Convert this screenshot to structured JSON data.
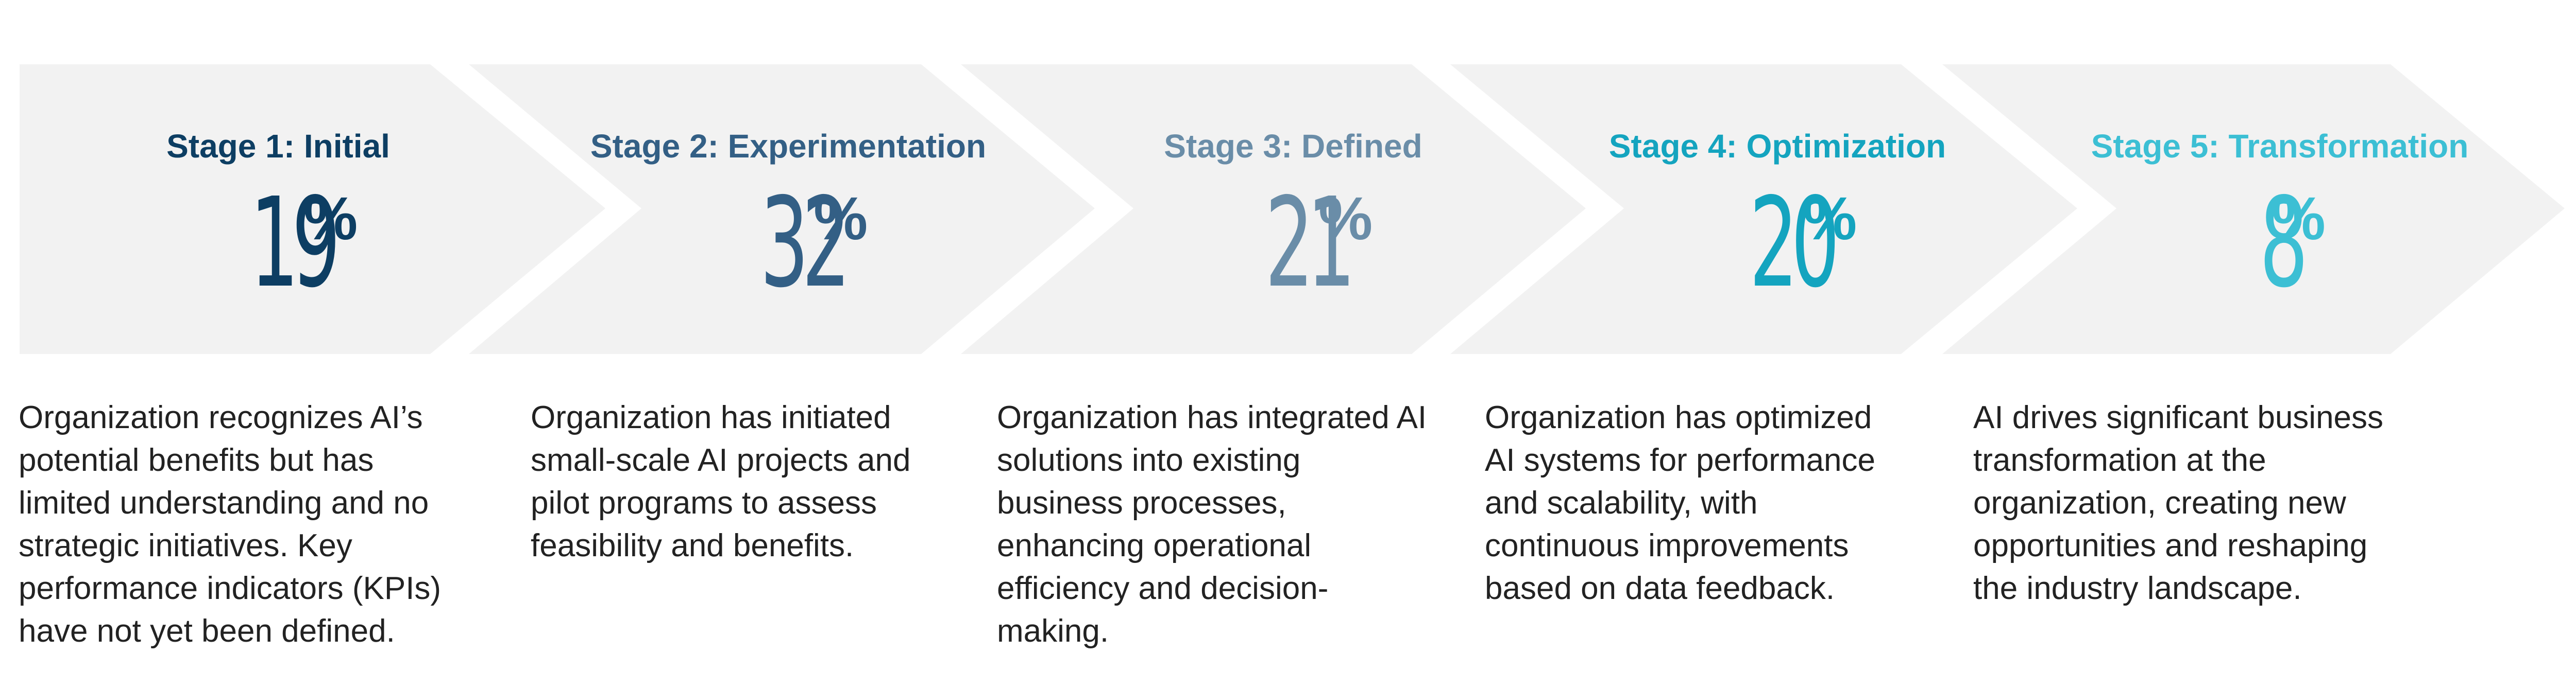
{
  "colors": {
    "chevron_fill": "#f2f2f2",
    "description_text": "#222222"
  },
  "stages": [
    {
      "title": "Stage 1: Initial",
      "percent_value": "19",
      "percent_sign": "%",
      "color": "#0d3e63",
      "description": "Organization recognizes AI’s potential benefits but has limited understanding and no strategic initiatives. Key performance indicators (KPIs) have not yet been defined."
    },
    {
      "title": "Stage 2: Experimentation",
      "percent_value": "32",
      "percent_sign": "%",
      "color": "#335f85",
      "description": "Organization has initiated small-scale AI projects and pilot programs to assess feasibility and benefits."
    },
    {
      "title": "Stage 3: Defined",
      "percent_value": "21",
      "percent_sign": "%",
      "color": "#6a8da8",
      "description": "Organization has integrated AI solutions into existing business processes, enhancing operational efficiency and decision-making."
    },
    {
      "title": "Stage 4: Optimization",
      "percent_value": "20",
      "percent_sign": "%",
      "color": "#14a4bf",
      "description": "Organization has optimized AI systems for performance and scalability, with continuous improvements based on data feedback."
    },
    {
      "title": "Stage 5: Transformation",
      "percent_value": "8",
      "percent_sign": "%",
      "color": "#3cbfd4",
      "description": "AI drives significant business transformation at the organization, creating new opportunities and reshaping the industry landscape."
    }
  ]
}
